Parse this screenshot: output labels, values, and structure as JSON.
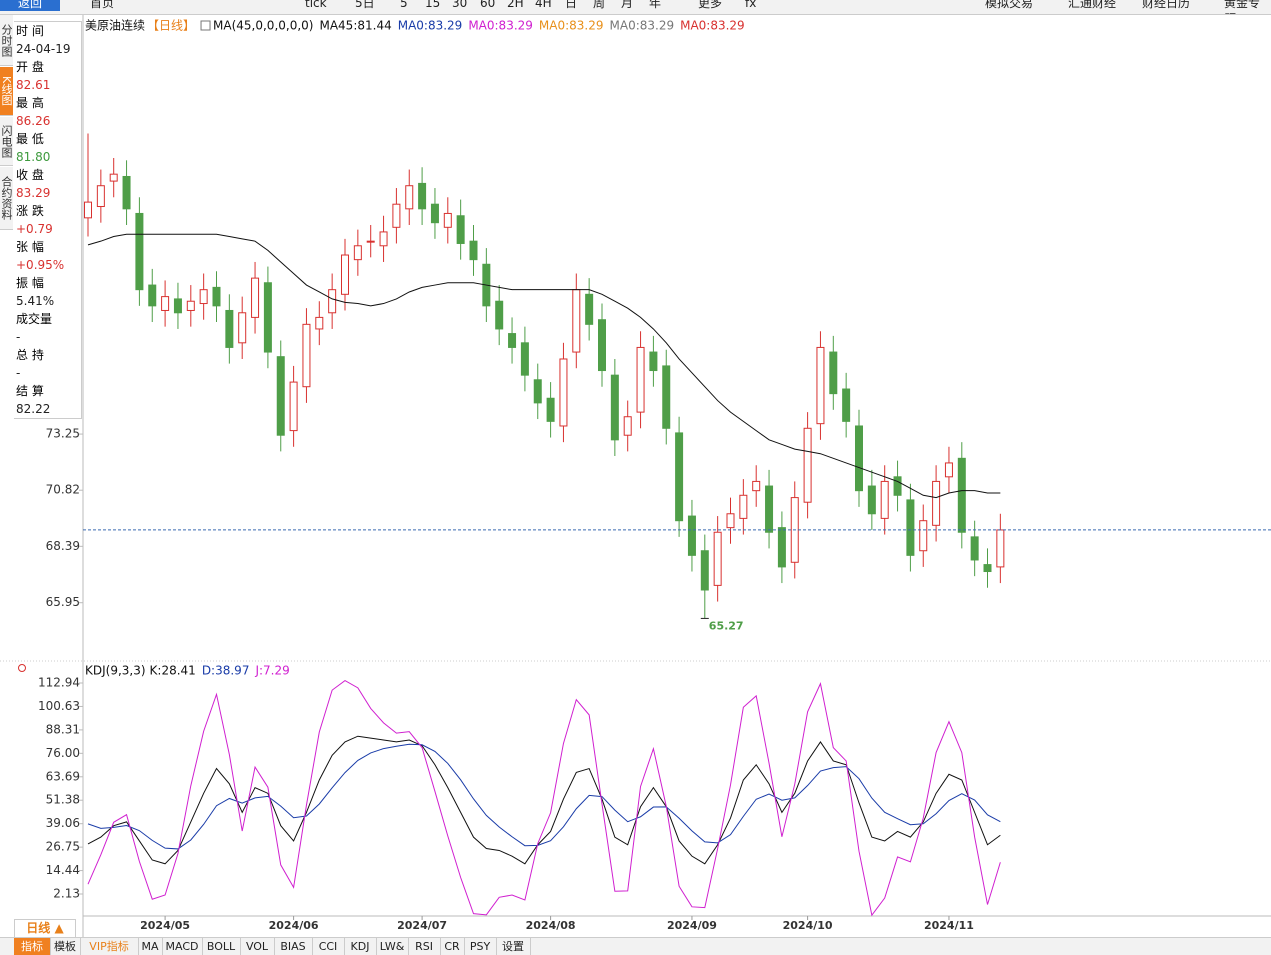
{
  "toolbar": [
    "返回",
    "首页",
    "tick",
    "5日",
    "5",
    "15",
    "30",
    "60",
    "2H",
    "4H",
    "日",
    "周",
    "月",
    "年",
    "更多",
    "fx",
    "模拟交易",
    "汇通财经",
    "财经日历",
    "黄金专题"
  ],
  "side_tabs": [
    "分时图",
    "K线图",
    "闪电图",
    "合约资料"
  ],
  "info_panel": [
    {
      "label": "时 间",
      "value": "24-04-19",
      "color": "#222"
    },
    {
      "label": "开 盘",
      "value": "82.61",
      "color": "#d8312f"
    },
    {
      "label": "最 高",
      "value": "86.26",
      "color": "#d8312f"
    },
    {
      "label": "最 低",
      "value": "81.80",
      "color": "#3d9a3d"
    },
    {
      "label": "收 盘",
      "value": "83.29",
      "color": "#d8312f"
    },
    {
      "label": "涨 跌",
      "value": "+0.79",
      "color": "#d8312f"
    },
    {
      "label": "张 幅",
      "value": "+0.95%",
      "color": "#d8312f"
    },
    {
      "label": "振 幅",
      "value": "5.41%",
      "color": "#222"
    },
    {
      "label": "成交量",
      "value": "-",
      "color": "#222"
    },
    {
      "label": "总 持",
      "value": "-",
      "color": "#222"
    },
    {
      "label": "结 算",
      "value": "82.22",
      "color": "#222"
    }
  ],
  "bottom": {
    "period": "日线 ▲",
    "tabs": [
      "指标",
      "模板",
      "VIP指标",
      "MA",
      "MACD",
      "BOLL",
      "VOL",
      "BIAS",
      "CCI",
      "KDJ",
      "LW&",
      "RSI",
      "CR",
      "PSY",
      "设置"
    ]
  },
  "chart_data": [
    {
      "type": "candlestick",
      "title": "美原油连续",
      "period": "【日线】",
      "indicator": "MA(45,0,0,0,0,0)",
      "legend": [
        {
          "label": "MA45:81.44",
          "color": "#111"
        },
        {
          "label": "MA0:83.29",
          "color": "#1a3ca8"
        },
        {
          "label": "MA0:83.29",
          "color": "#d020d0"
        },
        {
          "label": "MA0:83.29",
          "color": "#e8901a"
        },
        {
          "label": "MA0:83.29",
          "color": "#777777"
        },
        {
          "label": "MA0:83.29",
          "color": "#d8312f"
        }
      ],
      "categories": [
        null,
        null,
        null,
        null,
        null,
        null,
        "2024/05",
        null,
        null,
        null,
        null,
        null,
        null,
        null,
        null,
        null,
        "2024/06",
        null,
        null,
        null,
        null,
        null,
        null,
        null,
        null,
        null,
        "2024/07",
        null,
        null,
        null,
        null,
        null,
        null,
        null,
        null,
        null,
        "2024/08",
        null,
        null,
        null,
        null,
        null,
        null,
        null,
        null,
        null,
        null,
        "2024/09",
        null,
        null,
        null,
        null,
        null,
        null,
        null,
        null,
        "2024/10",
        null,
        null,
        null,
        null,
        null,
        null,
        null,
        null,
        null,
        null,
        "2024/11",
        null,
        null,
        null,
        null
      ],
      "open": [
        82.61,
        83.1,
        84.2,
        84.4,
        82.8,
        79.7,
        78.6,
        79.1,
        78.6,
        78.9,
        79.6,
        78.6,
        77.2,
        78.3,
        79.8,
        76.6,
        73.4,
        75.3,
        77.8,
        78.5,
        79.3,
        80.8,
        81.6,
        81.4,
        82.2,
        83.0,
        84.1,
        83.2,
        82.2,
        82.7,
        81.6,
        80.6,
        79.0,
        77.6,
        77.2,
        75.6,
        74.8,
        73.6,
        76.8,
        79.3,
        78.2,
        75.8,
        73.2,
        74.2,
        76.8,
        76.2,
        73.3,
        69.7,
        68.2,
        66.7,
        69.2,
        69.6,
        70.8,
        71.0,
        69.2,
        67.7,
        70.3,
        73.7,
        76.8,
        75.2,
        73.6,
        71.0,
        69.6,
        71.4,
        70.4,
        68.2,
        69.3,
        71.4,
        72.2,
        68.8,
        67.6,
        67.5
      ],
      "high": [
        86.26,
        84.7,
        85.2,
        85.1,
        83.5,
        80.4,
        79.9,
        79.8,
        79.7,
        80.2,
        80.3,
        79.3,
        79.2,
        80.7,
        80.5,
        77.3,
        76.2,
        78.7,
        79.0,
        80.2,
        81.7,
        82.1,
        82.3,
        82.7,
        83.9,
        84.7,
        84.8,
        83.9,
        83.5,
        83.4,
        82.3,
        81.3,
        79.7,
        78.3,
        77.9,
        76.3,
        75.5,
        77.2,
        80.2,
        80.0,
        78.9,
        76.5,
        74.7,
        77.7,
        77.5,
        76.9,
        74.0,
        70.4,
        68.9,
        69.7,
        70.5,
        71.3,
        71.9,
        71.7,
        69.9,
        71.2,
        74.2,
        77.7,
        77.5,
        75.9,
        74.3,
        71.7,
        71.9,
        72.1,
        71.1,
        70.2,
        71.9,
        72.7,
        72.9,
        69.5,
        68.3,
        69.8
      ],
      "low": [
        81.8,
        82.4,
        83.5,
        82.3,
        78.8,
        78.1,
        77.9,
        77.8,
        77.9,
        78.2,
        78.1,
        76.3,
        76.5,
        77.6,
        76.1,
        72.5,
        72.7,
        74.6,
        77.1,
        77.8,
        78.6,
        80.1,
        80.9,
        80.7,
        81.5,
        82.3,
        82.3,
        81.7,
        81.5,
        80.8,
        80.1,
        78.1,
        77.1,
        76.3,
        75.1,
        73.9,
        73.1,
        72.9,
        76.1,
        77.3,
        75.3,
        72.3,
        72.5,
        73.5,
        75.3,
        72.8,
        68.8,
        67.3,
        65.27,
        66.0,
        68.5,
        68.9,
        70.1,
        68.3,
        66.8,
        67.0,
        69.6,
        73.0,
        74.3,
        73.1,
        70.1,
        69.1,
        68.9,
        69.9,
        67.3,
        67.5,
        68.6,
        70.7,
        68.3,
        67.1,
        66.6,
        66.8
      ],
      "close": [
        83.29,
        84.0,
        84.5,
        83.0,
        79.5,
        78.8,
        79.2,
        78.5,
        79.0,
        79.5,
        78.8,
        77.0,
        78.5,
        80.0,
        76.8,
        73.2,
        75.5,
        78.0,
        78.3,
        79.5,
        81.0,
        81.4,
        81.6,
        82.0,
        83.2,
        84.0,
        83.0,
        82.4,
        82.8,
        81.5,
        80.8,
        78.8,
        77.8,
        77.0,
        75.8,
        74.6,
        73.8,
        76.5,
        79.5,
        78.0,
        76.0,
        73.0,
        74.0,
        77.0,
        76.0,
        73.5,
        69.5,
        68.0,
        66.5,
        69.0,
        69.8,
        70.6,
        71.2,
        69.0,
        67.5,
        70.5,
        73.5,
        77.0,
        75.0,
        73.8,
        70.8,
        69.8,
        71.2,
        70.6,
        68.0,
        69.5,
        71.2,
        72.0,
        69.0,
        67.8,
        67.3,
        69.1
      ],
      "up_color": "#d8312f",
      "down_color": "#4f9e48",
      "ma": {
        "color": "#111",
        "values": [
          81.44,
          81.6,
          81.8,
          81.9,
          81.9,
          81.9,
          81.9,
          81.9,
          81.9,
          81.9,
          81.9,
          81.8,
          81.7,
          81.6,
          81.2,
          80.7,
          80.2,
          79.7,
          79.4,
          79.1,
          78.95,
          78.9,
          78.8,
          78.9,
          79.1,
          79.4,
          79.6,
          79.7,
          79.8,
          79.8,
          79.8,
          79.7,
          79.6,
          79.5,
          79.5,
          79.5,
          79.5,
          79.5,
          79.5,
          79.5,
          79.3,
          79.0,
          78.7,
          78.3,
          77.8,
          77.2,
          76.5,
          75.9,
          75.3,
          74.7,
          74.2,
          73.8,
          73.4,
          73.0,
          72.8,
          72.6,
          72.5,
          72.4,
          72.2,
          72.0,
          71.8,
          71.6,
          71.4,
          71.2,
          70.9,
          70.6,
          70.5,
          70.7,
          70.8,
          70.8,
          70.7,
          70.7
        ]
      },
      "ylim": [
        63.47,
        91.39
      ],
      "yticks": [
        65.95,
        68.39,
        70.82,
        73.25
      ]
    },
    {
      "type": "line",
      "title": "KDJ(9,3,3)",
      "series": [
        {
          "name": "K:28.41",
          "color": "#111",
          "values": [
            28.41,
            32,
            38,
            40,
            30,
            20,
            18,
            25,
            40,
            55,
            68,
            60,
            45,
            58,
            55,
            38,
            30,
            45,
            62,
            75,
            82,
            85,
            84,
            83,
            82,
            83,
            80,
            70,
            58,
            45,
            32,
            26,
            25,
            22,
            18,
            28,
            35,
            52,
            66,
            68,
            52,
            32,
            28,
            48,
            58,
            48,
            30,
            22,
            18,
            28,
            42,
            62,
            70,
            60,
            45,
            55,
            72,
            82,
            72,
            70,
            50,
            32,
            30,
            35,
            32,
            40,
            55,
            65,
            62,
            45,
            28,
            33
          ]
        },
        {
          "name": "D:38.97",
          "color": "#1a3ca8",
          "values": [
            38.97,
            36.6,
            37.1,
            38.1,
            35.4,
            30.3,
            26.2,
            25.8,
            30.5,
            38.7,
            48.5,
            52.3,
            49.9,
            52.6,
            53.4,
            48.3,
            42.2,
            43.1,
            49.4,
            57.9,
            65.9,
            72.3,
            76.2,
            78.5,
            79.7,
            80.8,
            80.5,
            77,
            70.7,
            62.1,
            52.1,
            43.4,
            37.3,
            32.2,
            27.5,
            27.7,
            30.1,
            37.4,
            46.9,
            53.9,
            53.3,
            46.2,
            40.1,
            42.7,
            47.8,
            47.9,
            41.9,
            35.3,
            29.5,
            29,
            33.3,
            42.9,
            51.9,
            54.6,
            51.4,
            52.6,
            59.1,
            66.7,
            68.5,
            69,
            62.7,
            52.5,
            45,
            41.7,
            38.5,
            39,
            44.3,
            51.2,
            54.8,
            51.5,
            43.7,
            40.1
          ]
        },
        {
          "name": "J:7.29",
          "color": "#d020d0",
          "values": [
            7.29,
            22.8,
            39.8,
            43.8,
            19.2,
            -0.6,
            1.6,
            23.4,
            59,
            87.6,
            107,
            75.4,
            35.2,
            68.8,
            58.2,
            17.4,
            5.6,
            48.8,
            87.2,
            109.2,
            114.2,
            110.4,
            99.6,
            92,
            86.6,
            87.4,
            79,
            56,
            32.6,
            10.8,
            -8.2,
            -8.8,
            0.4,
            1.6,
            -1,
            28.6,
            44.8,
            81.2,
            104.2,
            96.2,
            49.4,
            3.6,
            3.8,
            58.6,
            78.4,
            48.2,
            6.2,
            -4.6,
            -5,
            26,
            59.4,
            100.2,
            106.2,
            70.8,
            32.2,
            59.8,
            97.8,
            112.6,
            79,
            72,
            24.6,
            -9,
            0,
            21.6,
            19,
            42,
            76.4,
            92.6,
            76.4,
            32,
            -3.4,
            18.8
          ]
        }
      ],
      "ylim": [
        -9.42,
        123.97
      ],
      "yticks": [
        2.13,
        14.44,
        26.75,
        39.06,
        51.38,
        63.69,
        {
          "value": 76,
          "label": "76.00"
        },
        88.31,
        100.63,
        112.94
      ]
    }
  ]
}
